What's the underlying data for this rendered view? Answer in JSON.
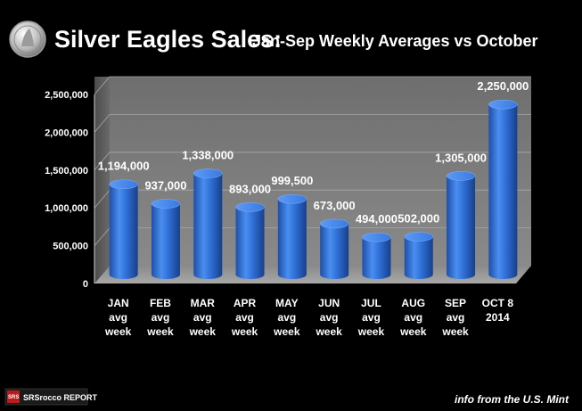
{
  "chart_data": {
    "type": "bar",
    "title": "Silver Eagles Sales:",
    "subtitle": "Jan-Sep Weekly Averages vs October",
    "categories": [
      [
        "JAN",
        "avg",
        "week"
      ],
      [
        "FEB",
        "avg",
        "week"
      ],
      [
        "MAR",
        "avg",
        "week"
      ],
      [
        "APR",
        "avg",
        "week"
      ],
      [
        "MAY",
        "avg",
        "week"
      ],
      [
        "JUN",
        "avg",
        "week"
      ],
      [
        "JUL",
        "avg",
        "week"
      ],
      [
        "AUG",
        "avg",
        "week"
      ],
      [
        "SEP",
        "avg",
        "week"
      ],
      [
        "OCT 8",
        "2014"
      ]
    ],
    "values": [
      1194000,
      937000,
      1338000,
      893000,
      999500,
      673000,
      494000,
      502000,
      1305000,
      2250000
    ],
    "data_labels": [
      "1,194,000",
      "937,000",
      "1,338,000",
      "893,000",
      "999,500",
      "673,000",
      "494,000",
      "502,000",
      "1,305,000",
      "2,250,000"
    ],
    "ylim": [
      0,
      2500000
    ],
    "yticks": [
      0,
      500000,
      1000000,
      1500000,
      2000000,
      2500000
    ],
    "ytick_labels": [
      "0",
      "500,000",
      "1,000,000",
      "1,500,000",
      "2,000,000",
      "2,500,000"
    ],
    "grid": true,
    "bar_color": "#2f6fd6",
    "background_wall": "#7b7b7b"
  },
  "source_note": "info from the U.S. Mint",
  "logo": {
    "text": "SRSrocco REPORT",
    "badge": "SRS"
  },
  "coin_icon": "silver-eagle-coin-icon"
}
